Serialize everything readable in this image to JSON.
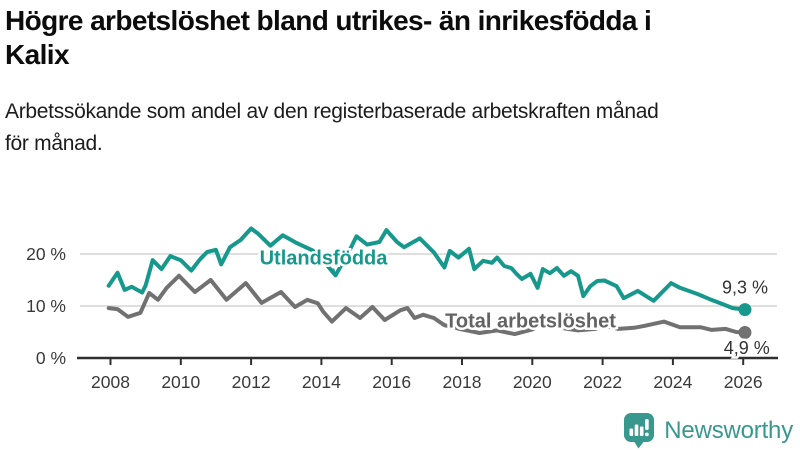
{
  "header": {
    "title_lines": [
      "Högre arbetslöshet bland utrikes- än inrikesfödda i",
      "Kalix"
    ],
    "subtitle_lines": [
      "Arbetssökande som andel av den registerbaserade arbetskraften månad",
      "för månad."
    ]
  },
  "chart_data": {
    "type": "line",
    "unit": "%",
    "grid": "horizontal",
    "colors": {
      "gridline": "#cccccc",
      "axis": "#2f2f2f",
      "tick_label": "#3a3a3a"
    },
    "x_axis": {
      "ticks": [
        {
          "value": 2008,
          "label": "2008"
        },
        {
          "value": 2010,
          "label": "2010"
        },
        {
          "value": 2012,
          "label": "2012"
        },
        {
          "value": 2014,
          "label": "2014"
        },
        {
          "value": 2016,
          "label": "2016"
        },
        {
          "value": 2018,
          "label": "2018"
        },
        {
          "value": 2020,
          "label": "2020"
        },
        {
          "value": 2022,
          "label": "2022"
        },
        {
          "value": 2024,
          "label": "2024"
        },
        {
          "value": 2026,
          "label": "2026"
        }
      ],
      "range": [
        2007.9,
        2026.9
      ]
    },
    "y_axis": {
      "ticks": [
        {
          "value": 0,
          "label": "0 %"
        },
        {
          "value": 10,
          "label": "10 %"
        },
        {
          "value": 20,
          "label": "20 %"
        }
      ],
      "range": [
        0,
        27
      ]
    },
    "series": [
      {
        "name": "Total arbetslöshet",
        "color": "#717171",
        "line_width": 4,
        "end_value": 4.9,
        "points": [
          [
            2007.95,
            9.6
          ],
          [
            2008.2,
            9.4
          ],
          [
            2008.5,
            7.9
          ],
          [
            2008.85,
            8.7
          ],
          [
            2009.1,
            12.5
          ],
          [
            2009.35,
            11.2
          ],
          [
            2009.6,
            13.5
          ],
          [
            2009.95,
            15.8
          ],
          [
            2010.4,
            12.7
          ],
          [
            2010.85,
            15.0
          ],
          [
            2011.3,
            11.2
          ],
          [
            2011.85,
            14.4
          ],
          [
            2012.3,
            10.6
          ],
          [
            2012.85,
            12.7
          ],
          [
            2013.25,
            9.8
          ],
          [
            2013.6,
            11.2
          ],
          [
            2013.9,
            10.5
          ],
          [
            2014.05,
            8.9
          ],
          [
            2014.3,
            7.0
          ],
          [
            2014.7,
            9.6
          ],
          [
            2015.1,
            7.7
          ],
          [
            2015.45,
            9.8
          ],
          [
            2015.8,
            7.3
          ],
          [
            2016.25,
            9.2
          ],
          [
            2016.45,
            9.6
          ],
          [
            2016.65,
            7.7
          ],
          [
            2016.9,
            8.3
          ],
          [
            2017.2,
            7.7
          ],
          [
            2017.5,
            6.3
          ],
          [
            2018.0,
            5.5
          ],
          [
            2018.5,
            4.8
          ],
          [
            2019.0,
            5.3
          ],
          [
            2019.5,
            4.6
          ],
          [
            2020.0,
            5.5
          ],
          [
            2020.3,
            6.6
          ],
          [
            2020.8,
            5.8
          ],
          [
            2021.3,
            5.3
          ],
          [
            2021.8,
            5.6
          ],
          [
            2022.0,
            6.3
          ],
          [
            2022.45,
            5.6
          ],
          [
            2022.9,
            5.8
          ],
          [
            2023.2,
            6.2
          ],
          [
            2023.75,
            7.0
          ],
          [
            2024.2,
            5.9
          ],
          [
            2024.8,
            5.9
          ],
          [
            2025.1,
            5.4
          ],
          [
            2025.5,
            5.6
          ],
          [
            2025.8,
            5.0
          ],
          [
            2026.05,
            4.9
          ]
        ]
      },
      {
        "name": "Utlandsfödda",
        "color": "#16998c",
        "line_width": 4,
        "end_value": 9.3,
        "points": [
          [
            2007.95,
            13.9
          ],
          [
            2008.2,
            16.4
          ],
          [
            2008.4,
            13.1
          ],
          [
            2008.6,
            13.7
          ],
          [
            2008.9,
            12.6
          ],
          [
            2009.0,
            14.0
          ],
          [
            2009.2,
            18.8
          ],
          [
            2009.45,
            17.1
          ],
          [
            2009.7,
            19.6
          ],
          [
            2010.0,
            18.8
          ],
          [
            2010.3,
            16.8
          ],
          [
            2010.55,
            19.0
          ],
          [
            2010.75,
            20.4
          ],
          [
            2011.0,
            20.8
          ],
          [
            2011.15,
            18.0
          ],
          [
            2011.4,
            21.3
          ],
          [
            2011.7,
            22.7
          ],
          [
            2012.0,
            24.9
          ],
          [
            2012.2,
            23.9
          ],
          [
            2012.55,
            21.6
          ],
          [
            2012.9,
            23.6
          ],
          [
            2013.3,
            22.1
          ],
          [
            2013.75,
            20.7
          ],
          [
            2014.1,
            18.3
          ],
          [
            2014.4,
            15.9
          ],
          [
            2014.75,
            20.0
          ],
          [
            2015.0,
            23.4
          ],
          [
            2015.3,
            21.8
          ],
          [
            2015.65,
            22.3
          ],
          [
            2015.85,
            24.6
          ],
          [
            2016.15,
            22.3
          ],
          [
            2016.35,
            21.3
          ],
          [
            2016.8,
            23.0
          ],
          [
            2017.2,
            20.3
          ],
          [
            2017.5,
            17.4
          ],
          [
            2017.65,
            20.6
          ],
          [
            2017.9,
            19.3
          ],
          [
            2018.2,
            21.0
          ],
          [
            2018.35,
            17.1
          ],
          [
            2018.6,
            18.7
          ],
          [
            2018.85,
            18.3
          ],
          [
            2019.0,
            19.3
          ],
          [
            2019.2,
            17.7
          ],
          [
            2019.4,
            17.3
          ],
          [
            2019.55,
            16.2
          ],
          [
            2019.7,
            15.2
          ],
          [
            2019.95,
            16.2
          ],
          [
            2020.15,
            13.5
          ],
          [
            2020.3,
            17.1
          ],
          [
            2020.5,
            16.3
          ],
          [
            2020.7,
            17.3
          ],
          [
            2020.9,
            15.8
          ],
          [
            2021.1,
            16.7
          ],
          [
            2021.3,
            15.8
          ],
          [
            2021.45,
            11.9
          ],
          [
            2021.65,
            13.8
          ],
          [
            2021.85,
            14.8
          ],
          [
            2022.05,
            14.9
          ],
          [
            2022.4,
            13.8
          ],
          [
            2022.6,
            11.5
          ],
          [
            2023.0,
            12.9
          ],
          [
            2023.45,
            11.0
          ],
          [
            2023.95,
            14.4
          ],
          [
            2024.2,
            13.5
          ],
          [
            2024.7,
            12.3
          ],
          [
            2025.05,
            11.3
          ],
          [
            2025.4,
            10.4
          ],
          [
            2025.7,
            9.6
          ],
          [
            2026.05,
            9.3
          ]
        ]
      }
    ],
    "annotations": [
      {
        "name": "series-label-utlandsfodda",
        "text": "Utlandsfödda",
        "x": 2014.06,
        "y": 19.0,
        "color": "#16998c",
        "size": 20,
        "weight": "bold",
        "halo": true
      },
      {
        "name": "series-pointer-caret",
        "text": "v",
        "x": 2014.42,
        "y": 16.4,
        "color": "#16998c",
        "size": 15,
        "weight": "bold",
        "halo": false
      },
      {
        "name": "series-label-total",
        "text": "Total arbetslöshet",
        "x": 2019.95,
        "y": 6.9,
        "color": "#636363",
        "size": 20,
        "weight": "bold",
        "halo": true
      },
      {
        "name": "end-value-utlandsfodda",
        "text": "9,3 %",
        "x": 2026.05,
        "y": 13.3,
        "color": "#333333",
        "size": 18,
        "weight": "normal",
        "halo": true
      },
      {
        "name": "end-value-total",
        "text": "4,9 %",
        "x": 2026.1,
        "y": 1.7,
        "color": "#333333",
        "size": 18,
        "weight": "normal",
        "halo": true
      }
    ]
  },
  "footer": {
    "brand": "Newsworthy",
    "brand_color": "#38988e"
  }
}
